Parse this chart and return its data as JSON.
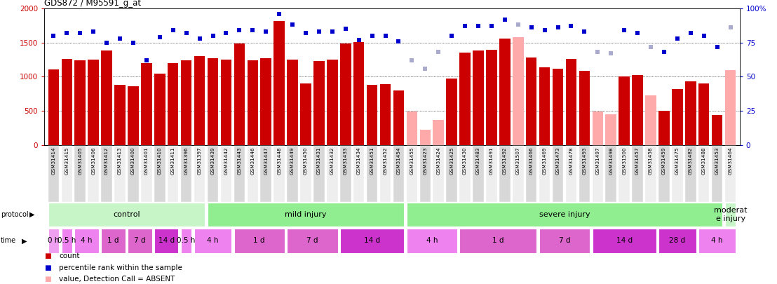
{
  "title": "GDS872 / M95591_g_at",
  "samples": [
    "GSM31414",
    "GSM31415",
    "GSM31405",
    "GSM31406",
    "GSM31412",
    "GSM31413",
    "GSM31400",
    "GSM31401",
    "GSM31410",
    "GSM31411",
    "GSM31396",
    "GSM31397",
    "GSM31439",
    "GSM31442",
    "GSM31443",
    "GSM31446",
    "GSM31447",
    "GSM31448",
    "GSM31449",
    "GSM31450",
    "GSM31431",
    "GSM31432",
    "GSM31433",
    "GSM31434",
    "GSM31451",
    "GSM31452",
    "GSM31454",
    "GSM31455",
    "GSM31423",
    "GSM31424",
    "GSM31425",
    "GSM31430",
    "GSM31483",
    "GSM31491",
    "GSM31492",
    "GSM31507",
    "GSM31466",
    "GSM31469",
    "GSM31473",
    "GSM31478",
    "GSM31493",
    "GSM31497",
    "GSM31498",
    "GSM31500",
    "GSM31457",
    "GSM31458",
    "GSM31459",
    "GSM31475",
    "GSM31482",
    "GSM31488",
    "GSM31453",
    "GSM31464"
  ],
  "bar_values": [
    1110,
    1260,
    1240,
    1250,
    1380,
    880,
    860,
    1200,
    1040,
    1200,
    1240,
    1300,
    1270,
    1250,
    1490,
    1240,
    1270,
    1820,
    1250,
    900,
    1230,
    1250,
    1490,
    1510,
    880,
    890,
    800,
    490,
    220,
    370,
    970,
    1350,
    1380,
    1390,
    1560,
    1580,
    1280,
    1140,
    1120,
    1260,
    1090,
    490,
    450,
    1000,
    1020,
    730,
    500,
    820,
    930,
    900,
    440,
    1100
  ],
  "bar_absent": [
    false,
    false,
    false,
    false,
    false,
    false,
    false,
    false,
    false,
    false,
    false,
    false,
    false,
    false,
    false,
    false,
    false,
    false,
    false,
    false,
    false,
    false,
    false,
    false,
    false,
    false,
    false,
    true,
    true,
    true,
    false,
    false,
    false,
    false,
    false,
    true,
    false,
    false,
    false,
    false,
    false,
    true,
    true,
    false,
    false,
    true,
    false,
    false,
    false,
    false,
    false,
    true
  ],
  "rank_values": [
    80,
    82,
    82,
    83,
    75,
    78,
    75,
    62,
    79,
    84,
    82,
    78,
    80,
    82,
    84,
    84,
    83,
    96,
    88,
    82,
    83,
    83,
    85,
    77,
    80,
    80,
    76,
    62,
    56,
    68,
    80,
    87,
    87,
    87,
    92,
    88,
    86,
    84,
    86,
    87,
    83,
    68,
    67,
    84,
    82,
    72,
    68,
    78,
    82,
    80,
    72,
    86
  ],
  "rank_absent": [
    false,
    false,
    false,
    false,
    false,
    false,
    false,
    false,
    false,
    false,
    false,
    false,
    false,
    false,
    false,
    false,
    false,
    false,
    false,
    false,
    false,
    false,
    false,
    false,
    false,
    false,
    false,
    true,
    true,
    true,
    false,
    false,
    false,
    false,
    false,
    true,
    false,
    false,
    false,
    false,
    false,
    true,
    true,
    false,
    false,
    true,
    false,
    false,
    false,
    false,
    false,
    true
  ],
  "protocol_groups": [
    {
      "label": "control",
      "start": 0,
      "end": 12,
      "color": "#c8f5c8"
    },
    {
      "label": "mild injury",
      "start": 12,
      "end": 27,
      "color": "#90ee90"
    },
    {
      "label": "severe injury",
      "start": 27,
      "end": 51,
      "color": "#90ee90"
    },
    {
      "label": "moderat\ne injury",
      "start": 51,
      "end": 52,
      "color": "#c8f5c8"
    }
  ],
  "time_groups": [
    {
      "label": "0 h",
      "start": 0,
      "end": 1,
      "shade": 0
    },
    {
      "label": "0.5 h",
      "start": 1,
      "end": 2,
      "shade": 1
    },
    {
      "label": "4 h",
      "start": 2,
      "end": 4,
      "shade": 1
    },
    {
      "label": "1 d",
      "start": 4,
      "end": 6,
      "shade": 2
    },
    {
      "label": "7 d",
      "start": 6,
      "end": 8,
      "shade": 2
    },
    {
      "label": "14 d",
      "start": 8,
      "end": 10,
      "shade": 3
    },
    {
      "label": "0.5 h",
      "start": 10,
      "end": 11,
      "shade": 1
    },
    {
      "label": "4 h",
      "start": 11,
      "end": 14,
      "shade": 1
    },
    {
      "label": "1 d",
      "start": 14,
      "end": 18,
      "shade": 2
    },
    {
      "label": "7 d",
      "start": 18,
      "end": 22,
      "shade": 2
    },
    {
      "label": "14 d",
      "start": 22,
      "end": 27,
      "shade": 3
    },
    {
      "label": "4 h",
      "start": 27,
      "end": 31,
      "shade": 1
    },
    {
      "label": "1 d",
      "start": 31,
      "end": 37,
      "shade": 2
    },
    {
      "label": "7 d",
      "start": 37,
      "end": 41,
      "shade": 2
    },
    {
      "label": "14 d",
      "start": 41,
      "end": 46,
      "shade": 3
    },
    {
      "label": "28 d",
      "start": 46,
      "end": 49,
      "shade": 3
    },
    {
      "label": "4 h",
      "start": 49,
      "end": 52,
      "shade": 1
    }
  ],
  "time_shade_colors": [
    "#f0a0f0",
    "#ee82ee",
    "#dd66cc",
    "#cc33cc"
  ],
  "bar_color_present": "#cc0000",
  "bar_color_absent": "#ffaaaa",
  "rank_color_present": "#0000cc",
  "rank_color_absent": "#aaaacc",
  "label_bg_even": "#d8d8d8",
  "label_bg_odd": "#eeeeee"
}
